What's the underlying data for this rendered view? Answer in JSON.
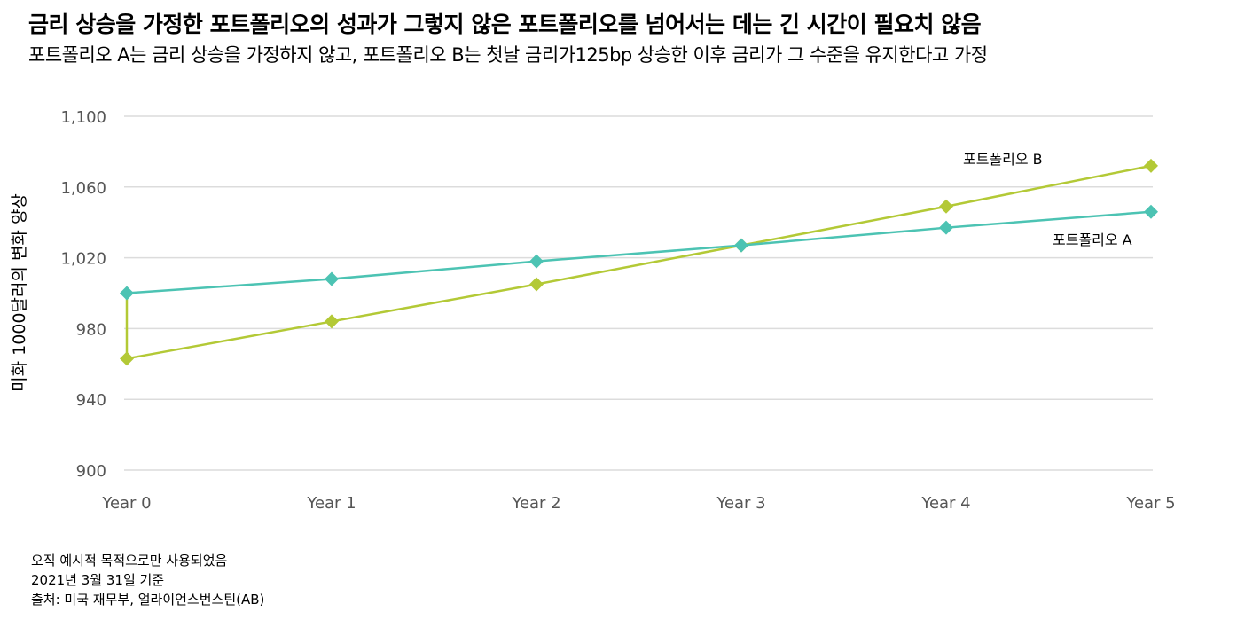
{
  "title": "금리 상승을 가정한 포트폴리오의 성과가 그렇지 않은 포트폴리오를 넘어서는 데는 긴 시간이 필요치 않음",
  "subtitle": "포트폴리오 A는 금리 상승을 가정하지 않고, 포트폴리오 B는 첫날 금리가125bp 상승한 이후 금리가 그 수준을 유지한다고 가정",
  "notes": [
    "오직 예시적 목적으로만 사용되었음",
    "2021년 3월 31일 기준",
    "출처: 미국 재무부, 얼라이언스번스틴(AB)"
  ],
  "chart_data": {
    "type": "line",
    "categories": [
      "Year 0",
      "Year 1",
      "Year 2",
      "Year 3",
      "Year 4",
      "Year 5"
    ],
    "ylabel": "미화 1000달러의 변화 양상",
    "ylim": [
      900,
      1100
    ],
    "yticks": [
      900,
      940,
      980,
      1020,
      1060,
      1100
    ],
    "ytick_labels": [
      "900",
      "940",
      "980",
      "1,020",
      "1,060",
      "1,100"
    ],
    "grid": true,
    "series": [
      {
        "name": "포트폴리오 A",
        "color": "#4cc3b3",
        "values": [
          1000,
          1008,
          1018,
          1027,
          1037,
          1046
        ]
      },
      {
        "name": "포트폴리오 B",
        "color": "#b3c936",
        "values": [
          963,
          984,
          1005,
          1027,
          1049,
          1072
        ],
        "start_from": 1000
      }
    ]
  }
}
